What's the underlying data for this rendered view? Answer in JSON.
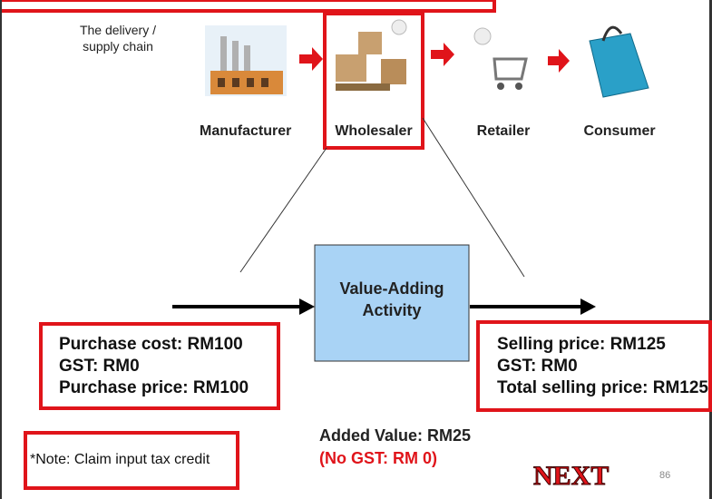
{
  "header": {
    "caption": [
      "The delivery /",
      "supply chain"
    ]
  },
  "chain": [
    {
      "label": "Manufacturer"
    },
    {
      "label": "Wholesaler"
    },
    {
      "label": "Retailer"
    },
    {
      "label": "Consumer"
    }
  ],
  "activity": {
    "lines": [
      "Value-Adding",
      "Activity"
    ]
  },
  "input": {
    "lines": [
      "Purchase cost:  RM100",
      "GST: RM0",
      "Purchase price: RM100"
    ]
  },
  "output": {
    "lines": [
      "Selling price: RM125",
      "GST: RM0",
      "Total selling price: RM125"
    ]
  },
  "note": "*Note: Claim input tax credit",
  "added_value": "Added Value: RM25",
  "no_gst": "(No GST: RM 0)",
  "next_button": "NEXT",
  "page_number": "86"
}
